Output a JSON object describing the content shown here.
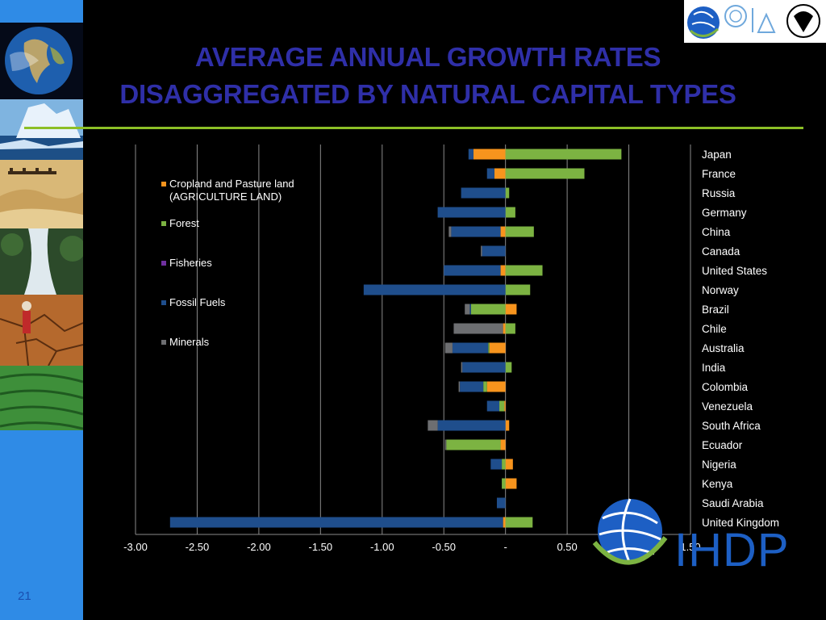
{
  "title_line1": "AVERAGE ANNUAL GROWTH RATES",
  "title_line2": "DISAGGREGATED BY NATURAL CAPITAL TYPES",
  "slide_number": "21",
  "logos": {
    "top_right": [
      "ihdp-logo-icon",
      "un-emblem-icon",
      "unu-logo-icon",
      "unep-logo-icon"
    ],
    "bottom_right_text": "IHDP"
  },
  "colors": {
    "agriculture": "#f7941d",
    "forest": "#7cb342",
    "fisheries": "#7030a0",
    "fossil_fuels": "#1f4e8c",
    "minerals": "#6d6e71",
    "title": "#2f2fa8",
    "rule": "#8cbf26"
  },
  "chart_data": {
    "type": "bar",
    "orientation": "horizontal",
    "stacked": true,
    "xlim": [
      -3.0,
      1.5
    ],
    "xticks": [
      "-3.00",
      "-2.50",
      "-2.00",
      "-1.50",
      "-1.00",
      "-0.50",
      "-",
      "0.50",
      "1.00",
      "1.50"
    ],
    "xtick_values": [
      -3.0,
      -2.5,
      -2.0,
      -1.5,
      -1.0,
      -0.5,
      0,
      0.5,
      1.0,
      1.5
    ],
    "grid": true,
    "legend_position": "left",
    "categories": [
      "Japan",
      "France",
      "Russia",
      "Germany",
      "China",
      "Canada",
      "United States",
      "Norway",
      "Brazil",
      "Chile",
      "Australia",
      "India",
      "Colombia",
      "Venezuela",
      "South Africa",
      "Ecuador",
      "Nigeria",
      "Kenya",
      "Saudi Arabia",
      "United Kingdom"
    ],
    "series": [
      {
        "name": "Cropland and Pasture land (AGRICULTURE LAND)",
        "name_lines": [
          "Cropland and Pasture land",
          "(AGRICULTURE LAND)"
        ],
        "key": "agriculture",
        "values": [
          -0.26,
          -0.09,
          0.0,
          0.0,
          -0.04,
          0.0,
          -0.04,
          0.0,
          0.09,
          -0.02,
          -0.13,
          0.0,
          -0.15,
          -0.01,
          0.03,
          -0.04,
          0.06,
          0.09,
          0.0,
          -0.02
        ]
      },
      {
        "name": "Forest",
        "key": "forest",
        "values": [
          0.94,
          0.64,
          0.03,
          0.08,
          0.23,
          0.0,
          0.3,
          0.2,
          -0.28,
          0.08,
          -0.01,
          0.05,
          -0.03,
          -0.04,
          0.0,
          -0.44,
          -0.03,
          -0.03,
          0.0,
          0.22
        ]
      },
      {
        "name": "Fisheries",
        "key": "fisheries",
        "values": [
          0,
          0,
          0,
          0,
          0,
          0,
          0,
          0,
          0,
          0,
          0,
          0,
          0,
          0,
          0,
          0,
          0,
          0,
          0,
          0
        ]
      },
      {
        "name": "Fossil Fuels",
        "key": "fossil_fuels",
        "values": [
          -0.04,
          -0.06,
          -0.36,
          -0.55,
          -0.4,
          -0.19,
          -0.46,
          -1.15,
          -0.01,
          0.0,
          -0.29,
          -0.35,
          -0.19,
          -0.1,
          -0.55,
          0.0,
          -0.09,
          0.0,
          -0.07,
          -2.7
        ]
      },
      {
        "name": "Minerals",
        "key": "minerals",
        "values": [
          0.0,
          0.0,
          0.0,
          0.0,
          -0.02,
          -0.01,
          0.0,
          0.0,
          -0.04,
          -0.4,
          -0.06,
          -0.01,
          -0.01,
          0.0,
          -0.08,
          -0.01,
          0.0,
          0.0,
          0.0,
          0.0
        ]
      }
    ]
  }
}
